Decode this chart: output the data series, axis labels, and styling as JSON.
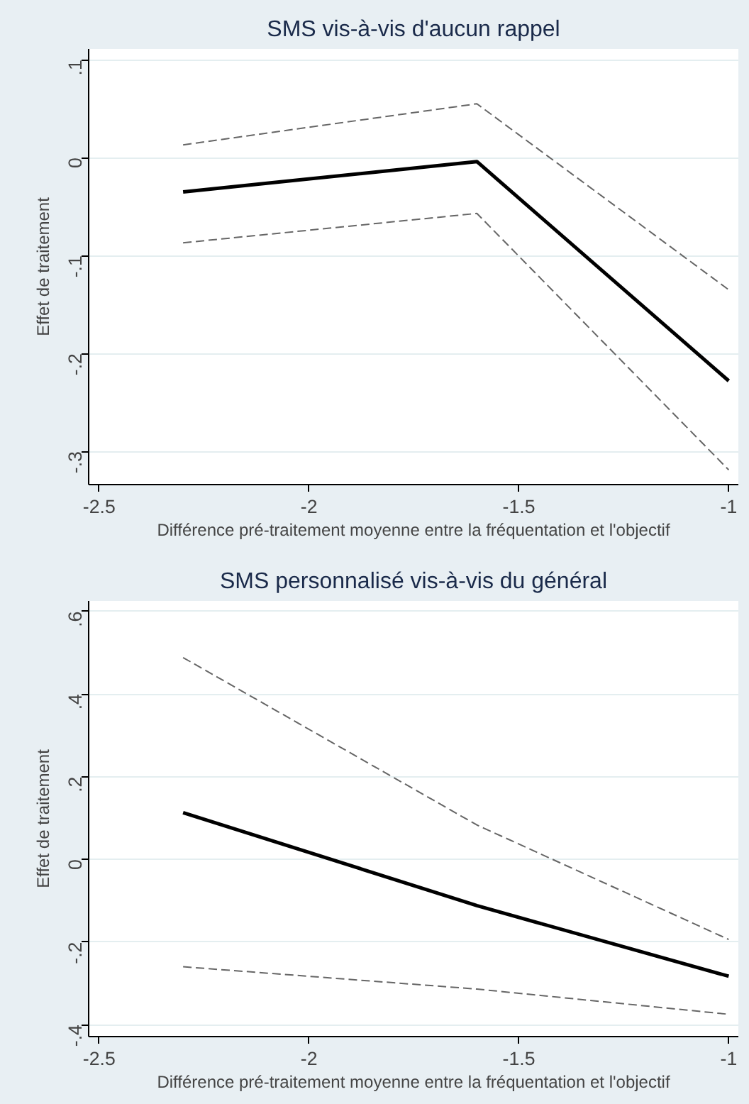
{
  "chart_data": [
    {
      "type": "line",
      "title": "SMS vis-à-vis d'aucun rappel",
      "xlabel": "Différence pré-traitement moyenne entre la fréquentation et l'objectif",
      "ylabel": "Effet de traitement",
      "x": [
        -2.3,
        -1.6,
        -1
      ],
      "series": [
        {
          "color": "#000000",
          "values": [
            -0.035,
            -0.004,
            -0.228
          ],
          "line_style": "solid"
        },
        {
          "color": "#666666",
          "values": [
            0.013,
            0.055,
            -0.135
          ],
          "line_style": "dashed"
        },
        {
          "color": "#666666",
          "values": [
            -0.087,
            -0.057,
            -0.319
          ],
          "line_style": "dashed"
        }
      ],
      "xlim": [
        -2.525,
        -0.977
      ],
      "xticks": [
        -2.5,
        -2,
        -1.5,
        -1
      ],
      "ylim": [
        -0.334,
        0.111
      ],
      "yticks": [
        {
          "value": -0.3,
          "label": "-.3"
        },
        {
          "value": -0.2,
          "label": "-.2"
        },
        {
          "value": -0.1,
          "label": "-.1"
        },
        0,
        {
          "value": 0.1,
          "label": ".1"
        }
      ],
      "grid": "y",
      "marker": "none"
    },
    {
      "type": "line",
      "title": "SMS personnalisé vis-à-vis du général",
      "xlabel": "Différence pré-traitement moyenne entre la fréquentation et l'objectif",
      "ylabel": "Effet de traitement",
      "x": [
        -2.3,
        -1.6,
        -1
      ],
      "series": [
        {
          "color": "#000000",
          "values": [
            0.113,
            -0.112,
            -0.283
          ],
          "line_style": "solid"
        },
        {
          "color": "#666666",
          "values": [
            0.488,
            0.083,
            -0.194
          ],
          "line_style": "dashed"
        },
        {
          "color": "#666666",
          "values": [
            -0.26,
            -0.314,
            -0.375
          ],
          "line_style": "dashed"
        }
      ],
      "xlim": [
        -2.525,
        -0.977
      ],
      "xticks": [
        -2.5,
        -2,
        -1.5,
        -1
      ],
      "ylim": [
        -0.429,
        0.625
      ],
      "yticks": [
        {
          "value": -0.4,
          "label": "-.4"
        },
        {
          "value": -0.2,
          "label": "-.2"
        },
        0,
        {
          "value": 0.2,
          "label": ".2"
        },
        {
          "value": 0.4,
          "label": ".4"
        },
        {
          "value": 0.6,
          "label": ".6"
        }
      ],
      "grid": "y",
      "marker": "none"
    }
  ]
}
